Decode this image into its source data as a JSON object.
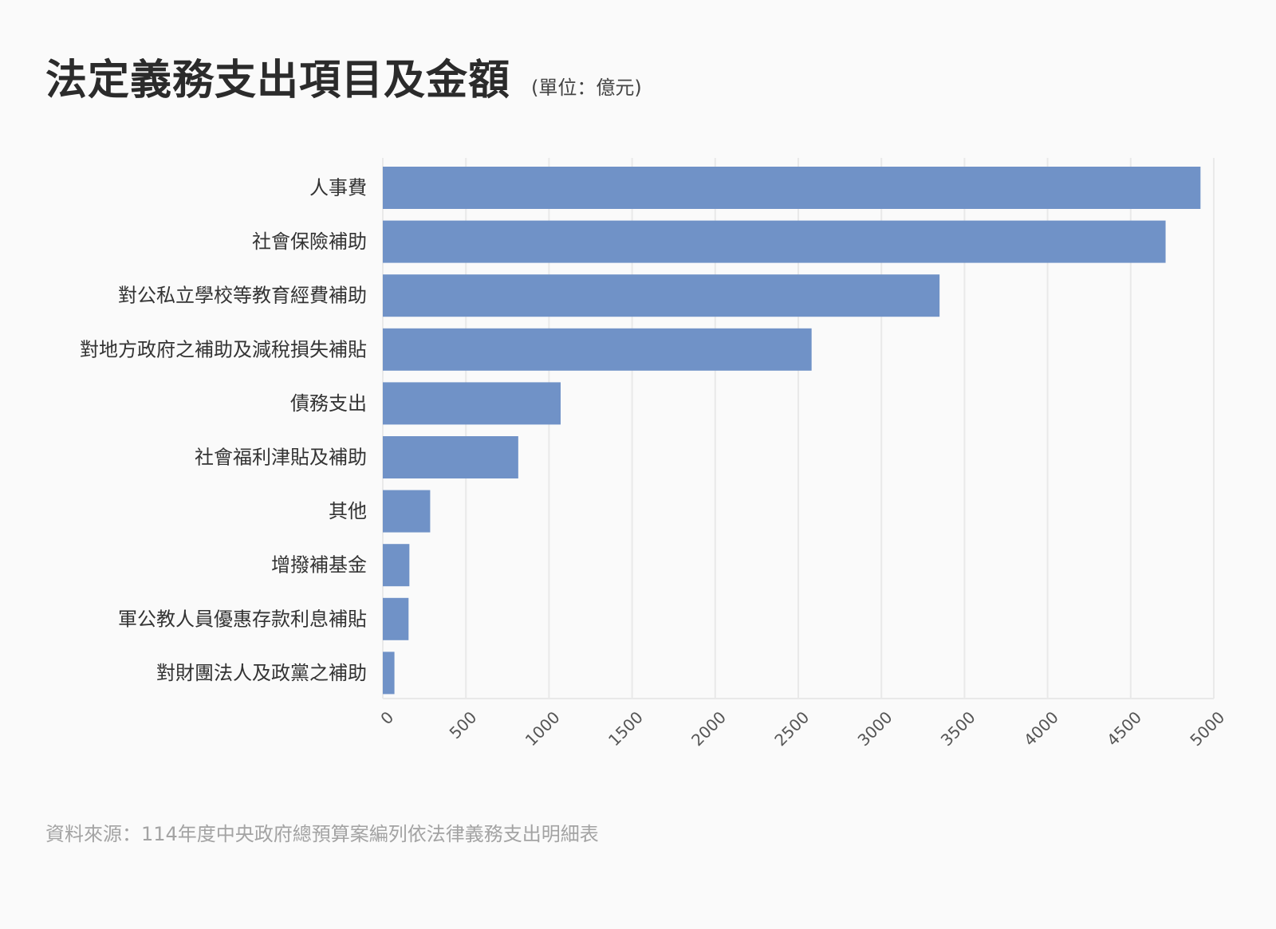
{
  "chart_data": {
    "type": "bar",
    "orientation": "horizontal",
    "title": "法定義務支出項目及金額",
    "unit": "(單位：億元)",
    "source": "資料來源：114年度中央政府總預算案編列依法律義務支出明細表",
    "categories": [
      "人事費",
      "社會保險補助",
      "對公私立學校等教育經費補助",
      "對地方政府之補助及減稅損失補貼",
      "債務支出",
      "社會福利津貼及補助",
      "其他",
      "增撥補基金",
      "軍公教人員優惠存款利息補貼",
      "對財團法人及政黨之補助"
    ],
    "values": [
      4920,
      4710,
      3350,
      2580,
      1070,
      815,
      285,
      160,
      155,
      70
    ],
    "xlim": [
      0,
      5000
    ],
    "xticks": [
      "0",
      "500",
      "1000",
      "1500",
      "2000",
      "2500",
      "3000",
      "3500",
      "4000",
      "4500",
      "5000"
    ],
    "grid": true,
    "bar_color": "#7092c7",
    "grid_color": "#e9e9e9"
  }
}
